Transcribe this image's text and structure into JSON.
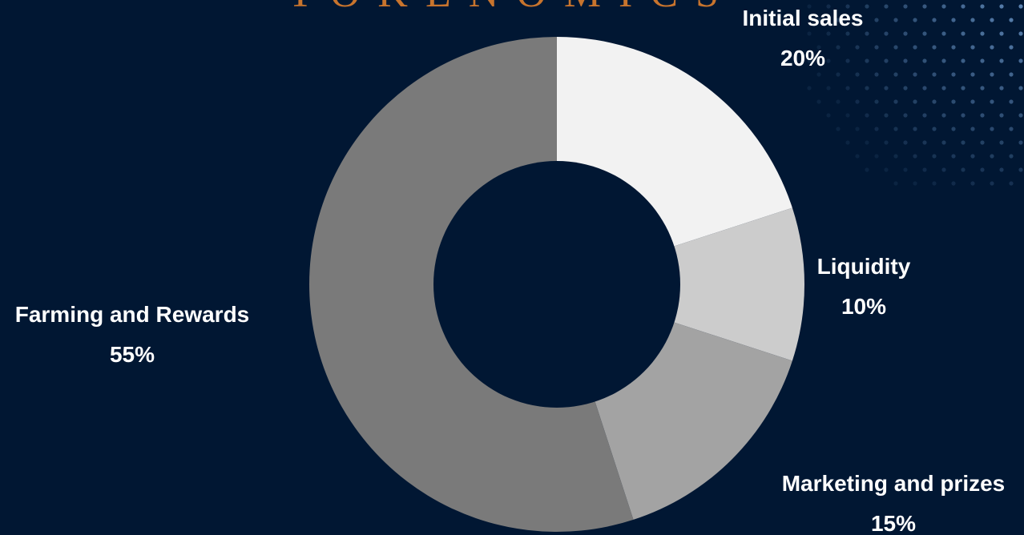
{
  "title": "TOKENOMICS",
  "colors": {
    "background": "#011733",
    "title": "#c8742d",
    "dots": "#5d86b5"
  },
  "chart_data": {
    "type": "pie",
    "variant": "donut",
    "start_angle_deg": 0,
    "direction": "clockwise",
    "slices": [
      {
        "label": "Initial sales",
        "value": 20,
        "display": "20%",
        "color": "#f2f2f2"
      },
      {
        "label": "Liquidity",
        "value": 10,
        "display": "10%",
        "color": "#cccccc"
      },
      {
        "label": "Marketing and prizes",
        "value": 15,
        "display": "15%",
        "color": "#a3a3a3"
      },
      {
        "label": "Farming and Rewards",
        "value": 55,
        "display": "55%",
        "color": "#7a7a7a"
      }
    ]
  }
}
